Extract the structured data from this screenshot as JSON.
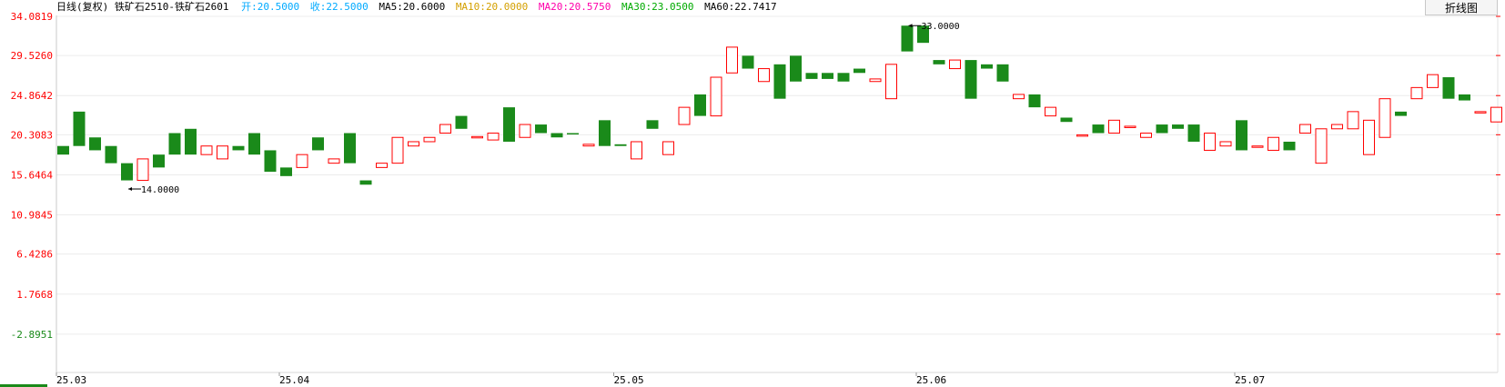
{
  "header": {
    "title": "日线(复权) 铁矿石2510-铁矿石2601",
    "open_label": "开:",
    "open_value": "20.5000",
    "close_label": "收:",
    "close_value": "22.5000",
    "ma5_label": "MA5:",
    "ma5_value": "20.6000",
    "ma10_label": "MA10:",
    "ma10_value": "20.0000",
    "ma20_label": "MA20:",
    "ma20_value": "20.5750",
    "ma30_label": "MA30:",
    "ma30_value": "23.0500",
    "ma60_label": "MA60:",
    "ma60_value": "22.7417"
  },
  "colors": {
    "up": "#ff0000",
    "down": "#1a8a1a",
    "open": "#00aaff",
    "close": "#00aaff",
    "ma5": "#000000",
    "ma10": "#d4a000",
    "ma20": "#ff00aa",
    "ma30": "#00aa00",
    "ma60": "#000000"
  },
  "toolbar": {
    "switch_label": "折线图"
  },
  "chart_data": {
    "type": "candlestick",
    "y_ticks": [
      {
        "value": 34.0819,
        "label": "34.0819",
        "color": "#ff0000"
      },
      {
        "value": 29.526,
        "label": "29.5260",
        "color": "#ff0000"
      },
      {
        "value": 24.8642,
        "label": "24.8642",
        "color": "#ff0000"
      },
      {
        "value": 20.3083,
        "label": "20.3083",
        "color": "#ff0000"
      },
      {
        "value": 15.6464,
        "label": "15.6464",
        "color": "#ff0000"
      },
      {
        "value": 10.9845,
        "label": "10.9845",
        "color": "#ff0000"
      },
      {
        "value": 6.4286,
        "label": "6.4286",
        "color": "#ff0000"
      },
      {
        "value": 1.7668,
        "label": "1.7668",
        "color": "#ff0000"
      },
      {
        "value": -2.8951,
        "label": "-2.8951",
        "color": "#1a8a1a"
      }
    ],
    "ylim": [
      -7.0,
      34.0819
    ],
    "x_labels": [
      {
        "label": "25.03",
        "index": 0
      },
      {
        "label": "25.04",
        "index": 14
      },
      {
        "label": "25.05",
        "index": 35
      },
      {
        "label": "25.06",
        "index": 54
      },
      {
        "label": "25.07",
        "index": 74
      }
    ],
    "candles": [
      [
        19,
        18
      ],
      [
        23,
        19
      ],
      [
        20,
        18.5
      ],
      [
        19,
        17
      ],
      [
        17,
        15
      ],
      [
        15,
        17.5
      ],
      [
        18,
        16.5
      ],
      [
        20.5,
        18
      ],
      [
        21,
        18
      ],
      [
        18,
        19
      ],
      [
        17.5,
        19
      ],
      [
        19,
        18.5
      ],
      [
        20.5,
        18
      ],
      [
        18.5,
        16
      ],
      [
        16.5,
        15.5
      ],
      [
        16.5,
        18
      ],
      [
        20,
        18.5
      ],
      [
        17,
        17.5
      ],
      [
        20.5,
        17
      ],
      [
        15,
        14.5
      ],
      [
        16.5,
        17
      ],
      [
        17,
        20
      ],
      [
        19,
        19.5
      ],
      [
        19.5,
        20
      ],
      [
        20.5,
        21.5
      ],
      [
        22.5,
        21
      ],
      [
        20,
        20.1
      ],
      [
        19.7,
        20.5
      ],
      [
        23.5,
        19.5
      ],
      [
        20,
        21.5
      ],
      [
        21.5,
        20.5
      ],
      [
        20.5,
        20
      ],
      [
        20.5,
        20.4
      ],
      [
        19,
        19.2
      ],
      [
        22,
        19
      ],
      [
        19.2,
        19
      ],
      [
        17.5,
        19.5
      ],
      [
        22,
        21
      ],
      [
        18,
        19.5
      ],
      [
        21.5,
        23.5
      ],
      [
        25,
        22.5
      ],
      [
        22.5,
        27
      ],
      [
        27.5,
        30.5
      ],
      [
        29.5,
        28
      ],
      [
        26.5,
        28
      ],
      [
        28.5,
        24.5
      ],
      [
        29.5,
        26.5
      ],
      [
        27.5,
        26.8
      ],
      [
        27.5,
        26.8
      ],
      [
        27.5,
        26.5
      ],
      [
        28,
        27.5
      ],
      [
        26.5,
        26.8
      ],
      [
        24.5,
        28.5
      ],
      [
        33,
        30
      ],
      [
        33,
        31
      ],
      [
        29,
        28.5
      ],
      [
        28,
        29
      ],
      [
        29,
        24.5
      ],
      [
        28.5,
        28
      ],
      [
        28.5,
        26.5
      ],
      [
        24.5,
        25
      ],
      [
        25,
        23.5
      ],
      [
        22.5,
        23.5
      ],
      [
        22.3,
        21.8
      ],
      [
        20.2,
        20.3
      ],
      [
        21.5,
        20.5
      ],
      [
        20.5,
        22
      ],
      [
        21.3,
        21.3
      ],
      [
        20,
        20.5
      ],
      [
        21.5,
        20.5
      ],
      [
        21.5,
        21
      ],
      [
        21.5,
        19.5
      ],
      [
        18.5,
        20.5
      ],
      [
        19,
        19.5
      ],
      [
        22,
        18.5
      ],
      [
        19,
        19
      ],
      [
        18.5,
        20
      ],
      [
        19.5,
        18.5
      ],
      [
        20.5,
        21.5
      ],
      [
        17,
        21
      ],
      [
        21,
        21.5
      ],
      [
        21,
        23
      ],
      [
        18,
        22
      ],
      [
        20,
        24.5
      ],
      [
        23,
        22.5
      ],
      [
        24.5,
        25.8
      ],
      [
        25.8,
        27.3
      ],
      [
        27,
        24.5
      ],
      [
        25,
        24.3
      ],
      [
        23,
        23
      ],
      [
        21.8,
        23.5
      ],
      [
        26.5,
        23.5
      ]
    ],
    "annotations": [
      {
        "label": "14.0000",
        "index": 4,
        "value": 14.0
      },
      {
        "label": "33.0000",
        "index": 53,
        "value": 33.0
      }
    ],
    "x_bottom_labels_count": 5
  }
}
